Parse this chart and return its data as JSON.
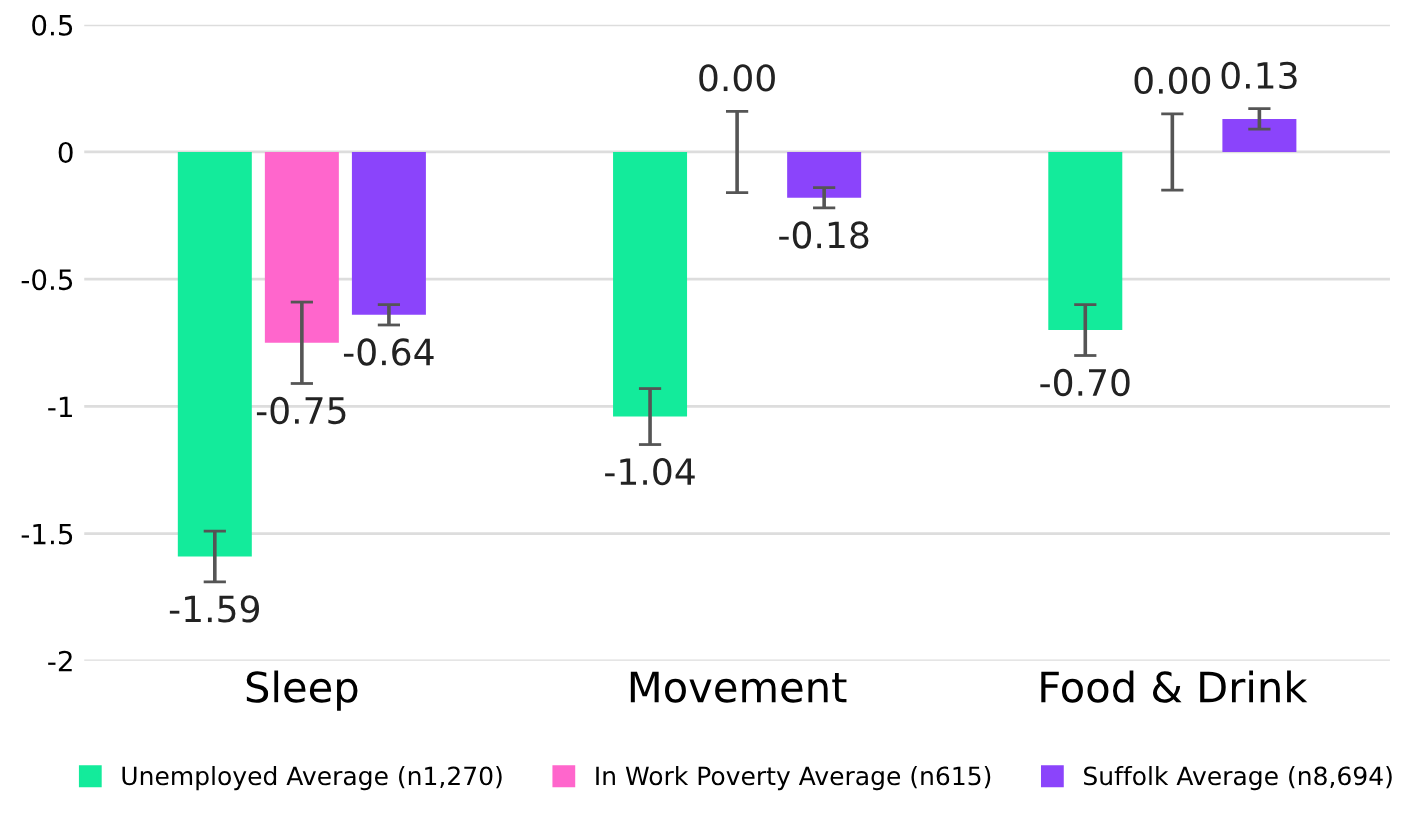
{
  "chart_data": {
    "type": "bar",
    "categories": [
      "Sleep",
      "Movement",
      "Food & Drink"
    ],
    "series": [
      {
        "name": "Unemployed Average (n1,270)",
        "color": "#13eb9b",
        "values": [
          -1.59,
          -1.04,
          -0.7
        ],
        "errors": [
          0.1,
          0.11,
          0.1
        ],
        "value_labels": [
          "-1.59",
          "-1.04",
          "-0.70"
        ]
      },
      {
        "name": "In Work Poverty Average (n615)",
        "color": "#ff66cc",
        "values": [
          -0.75,
          0.0,
          0.0
        ],
        "errors": [
          0.16,
          0.16,
          0.15
        ],
        "value_labels": [
          "-0.75",
          "0.00",
          "0.00"
        ]
      },
      {
        "name": "Suffolk Average (n8,694)",
        "color": "#8b44fb",
        "values": [
          -0.64,
          -0.18,
          0.13
        ],
        "errors": [
          0.04,
          0.04,
          0.04
        ],
        "value_labels": [
          "-0.64",
          "-0.18",
          "0.13"
        ]
      }
    ],
    "ylim": [
      -2,
      0.5
    ],
    "yticks": [
      {
        "value": 0.5,
        "label": "0.5"
      },
      {
        "value": 0,
        "label": "0"
      },
      {
        "value": -0.5,
        "label": "-0.5"
      },
      {
        "value": -1,
        "label": "-1"
      },
      {
        "value": -1.5,
        "label": "-1.5"
      },
      {
        "value": -2,
        "label": "-2"
      }
    ],
    "grid": "y",
    "legend": "bottom"
  }
}
